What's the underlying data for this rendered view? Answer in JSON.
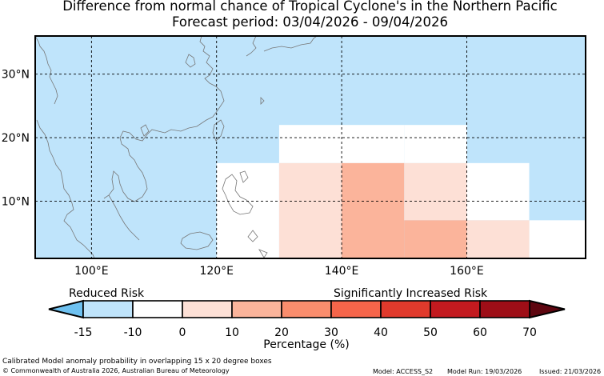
{
  "title": {
    "line1": "Difference from normal chance of Tropical Cyclone's in the Northern Pacific",
    "line2": "Forecast period: 03/04/2026 - 09/04/2026"
  },
  "map": {
    "lon_range": [
      91,
      179
    ],
    "lat_range": [
      1,
      36
    ],
    "lon_ticks": [
      "100°E",
      "120°E",
      "140°E",
      "160°E"
    ],
    "lon_tick_values": [
      100,
      120,
      140,
      160
    ],
    "lat_ticks": [
      "30°N",
      "20°N",
      "10°N"
    ],
    "lat_tick_values": [
      30,
      20,
      10
    ],
    "background_class": "-15 to -10",
    "boxes": [
      {
        "lon": [
          120,
          130
        ],
        "lat": [
          16,
          22
        ],
        "class": "-15 to -10"
      },
      {
        "lon": [
          130,
          150
        ],
        "lat": [
          16,
          22
        ],
        "class": "-10 to 0"
      },
      {
        "lon": [
          150,
          160
        ],
        "lat": [
          16,
          22
        ],
        "class": "-10 to 0"
      },
      {
        "lon": [
          120,
          130
        ],
        "lat": [
          1,
          16
        ],
        "class": "-10 to 0"
      },
      {
        "lon": [
          130,
          140
        ],
        "lat": [
          1,
          16
        ],
        "class": "0 to 10"
      },
      {
        "lon": [
          140,
          150
        ],
        "lat": [
          1,
          16
        ],
        "class": "10 to 20"
      },
      {
        "lon": [
          150,
          160
        ],
        "lat": [
          7,
          16
        ],
        "class": "0 to 10"
      },
      {
        "lon": [
          150,
          160
        ],
        "lat": [
          1,
          7
        ],
        "class": "10 to 20"
      },
      {
        "lon": [
          160,
          170
        ],
        "lat": [
          7,
          16
        ],
        "class": "-10 to 0"
      },
      {
        "lon": [
          160,
          170
        ],
        "lat": [
          1,
          7
        ],
        "class": "0 to 10"
      },
      {
        "lon": [
          170,
          179
        ],
        "lat": [
          7,
          16
        ],
        "class": "-15 to -10"
      },
      {
        "lon": [
          170,
          179
        ],
        "lat": [
          1,
          7
        ],
        "class": "-10 to 0"
      }
    ]
  },
  "colorbar": {
    "label_left": "Reduced Risk",
    "label_right": "Significantly Increased Risk",
    "ticks": [
      "-15",
      "-10",
      "0",
      "10",
      "20",
      "30",
      "40",
      "50",
      "60",
      "70"
    ],
    "under_color": "#6ec1f0",
    "over_color": "#5e0610",
    "colors": [
      "#bfe4fb",
      "#ffffff",
      "#fde0d6",
      "#fbb49b",
      "#fa8d6d",
      "#f6654a",
      "#e13a2c",
      "#c31a1f",
      "#9e0e17"
    ],
    "xlabel": "Percentage (%)"
  },
  "colors": {
    "-15 to -10": "#bfe4fb",
    "-10 to 0": "#ffffff",
    "0 to 10": "#fde0d6",
    "10 to 20": "#fbb49b",
    "ocean": "#87cefa",
    "coast": "#777777"
  },
  "footer": {
    "note": "Calibrated Model anomaly probability in overlapping 15 x 20 degree boxes",
    "copyright": "© Commonwealth of Australia 2026, Australian Bureau of Meteorology",
    "model": "Model: ACCESS_S2",
    "run": "Model Run: 19/03/2026",
    "issued": "Issued: 21/03/2026"
  }
}
